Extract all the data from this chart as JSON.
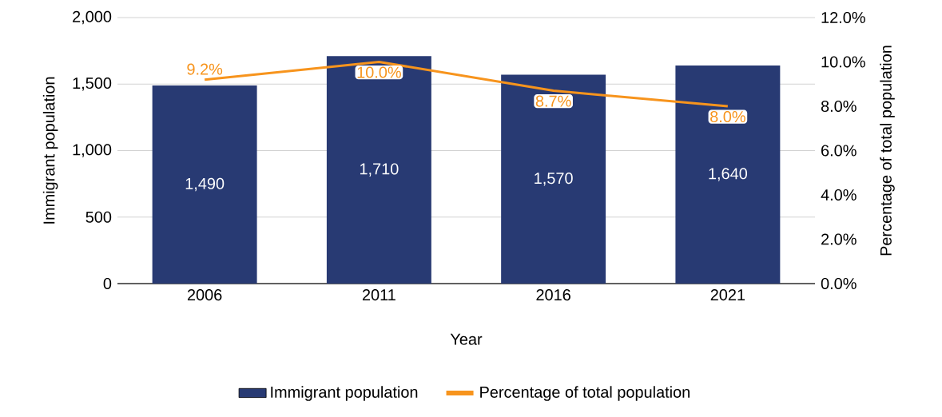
{
  "chart_data": {
    "type": "bar",
    "categories": [
      "2006",
      "2011",
      "2016",
      "2021"
    ],
    "series": [
      {
        "name": "Immigrant population",
        "color": "#283a73",
        "values": [
          1490,
          1710,
          1570,
          1640
        ],
        "value_labels": [
          "1,490",
          "1,710",
          "1,570",
          "1,640"
        ]
      },
      {
        "name": "Percentage of total population",
        "type": "line",
        "axis": "y2",
        "color": "#f7941d",
        "values": [
          9.2,
          10.0,
          8.7,
          8.0
        ],
        "value_labels": [
          "9.2%",
          "10.0%",
          "8.7%",
          "8.0%"
        ]
      }
    ],
    "xlabel": "Year",
    "ylabel": "Immigrant population",
    "y2label": "Percentage of total population",
    "ylim": [
      0,
      2000
    ],
    "yticks": [
      0,
      {
        "value": 500,
        "label": "500"
      },
      {
        "value": 1000,
        "label": "1,000"
      },
      {
        "value": 1500,
        "label": "1,500"
      },
      {
        "value": 2000,
        "label": "2,000"
      }
    ],
    "y2lim": [
      0,
      12
    ],
    "y2ticks": [
      {
        "value": 0,
        "label": "0.0%"
      },
      {
        "value": 2,
        "label": "2.0%"
      },
      {
        "value": 4,
        "label": "4.0%"
      },
      {
        "value": 6,
        "label": "6.0%"
      },
      {
        "value": 8,
        "label": "8.0%"
      },
      {
        "value": 10,
        "label": "10.0%"
      },
      {
        "value": 12,
        "label": "12.0%"
      }
    ],
    "grid": "y",
    "legend": "bottom"
  }
}
